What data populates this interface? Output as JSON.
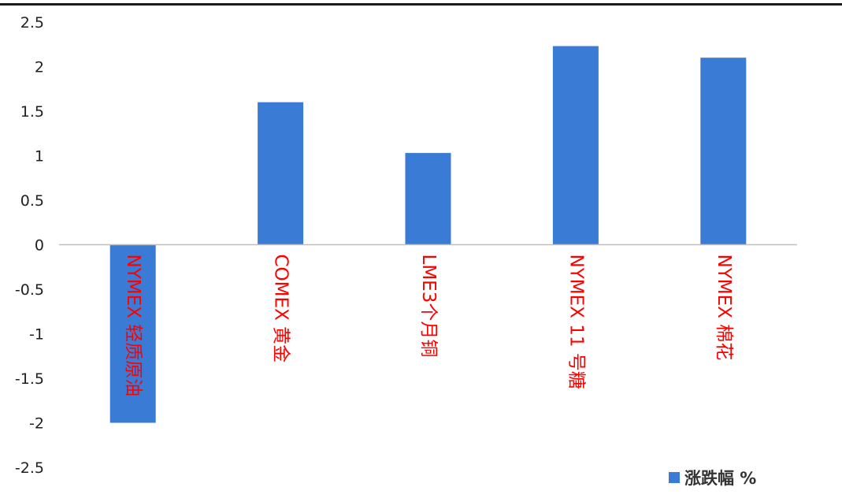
{
  "chart_data": {
    "type": "bar",
    "categories": [
      "NYMEX 轻质原油",
      "COMEX 黄金",
      "LME3个月铜",
      "NYMEX 11 号糖",
      "NYMEX 棉花"
    ],
    "series": [
      {
        "name": "涨跌幅 %",
        "values": [
          -2.0,
          1.6,
          1.03,
          2.23,
          2.1
        ]
      }
    ],
    "yticks": [
      "2.5",
      "2",
      "1.5",
      "1",
      "0.5",
      "0",
      "-0.5",
      "-1",
      "-1.5",
      "-2",
      "-2.5"
    ],
    "ylim": [
      -2.5,
      2.5
    ],
    "grid": false,
    "legend": "bottom-right",
    "bar_color": "#3a7bd5",
    "label_color": "#ff0000",
    "zero_line_color": "#bfbfbf"
  }
}
